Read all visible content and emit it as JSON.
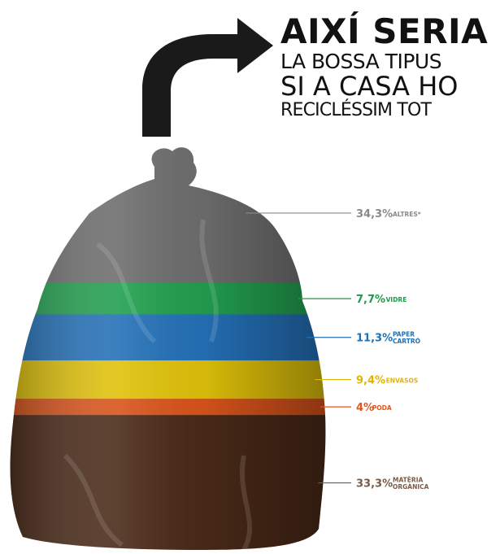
{
  "headline": {
    "line1": "AIXÍ SERIA",
    "line2": "LA BOSSA TIPUS",
    "line3": "SI A CASA HO",
    "line4": "RECICLÉSSIM TOT"
  },
  "chart_data": {
    "type": "stacked-bar",
    "categories": [
      "ALTRES*",
      "VIDRE",
      "PAPER CARTRÓ",
      "ENVASOS",
      "PODA",
      "MATÈRIA ORGÀNICA"
    ],
    "series": [
      {
        "values": [
          34.3,
          7.7,
          11.3,
          9.4,
          4,
          33.3
        ]
      }
    ],
    "labels": [
      {
        "value": "34,3%",
        "name": [
          "ALTRES*"
        ],
        "color": "#8a8a8a"
      },
      {
        "value": "7,7%",
        "name": [
          "VIDRE"
        ],
        "color": "#1f9a4a"
      },
      {
        "value": "11,3%",
        "name": [
          "PAPER",
          "CARTRÓ"
        ],
        "color": "#1f6fb5"
      },
      {
        "value": "9,4%",
        "name": [
          "ENVASOS"
        ],
        "color": "#e3b400"
      },
      {
        "value": "4%",
        "name": [
          "PODA"
        ],
        "color": "#e5531e"
      },
      {
        "value": "33,3%",
        "name": [
          "MATÈRIA",
          "ORGÀNICA"
        ],
        "color": "#7a5a45"
      }
    ],
    "band_colors": [
      "#6e6e6e",
      "#22a04f",
      "#2471b8",
      "#e0c20a",
      "#d9541b",
      "#4a2a18"
    ]
  }
}
